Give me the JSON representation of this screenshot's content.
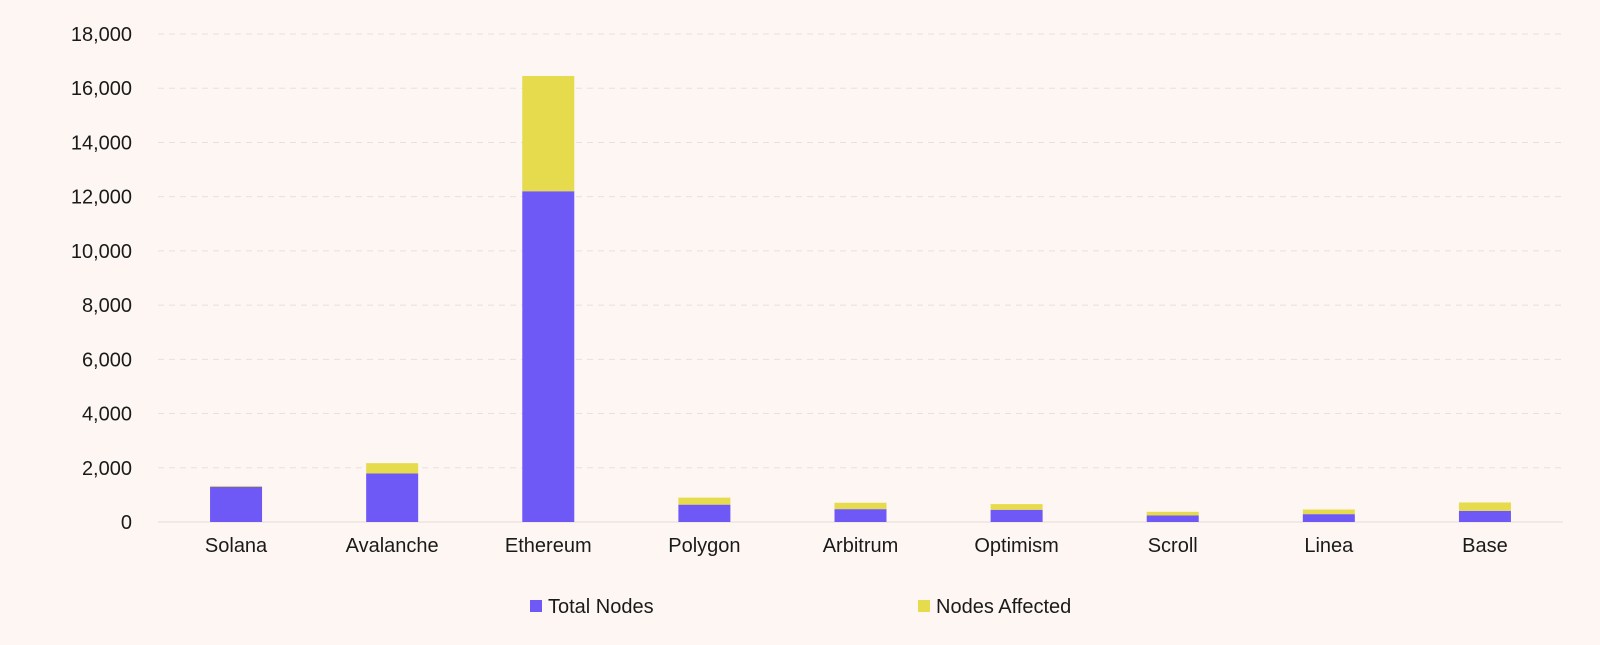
{
  "chart_data": {
    "type": "bar",
    "stacked": true,
    "title": "",
    "xlabel": "",
    "ylabel": "",
    "ylim": [
      0,
      18000
    ],
    "yticks": [
      0,
      2000,
      4000,
      6000,
      8000,
      10000,
      12000,
      14000,
      16000,
      18000
    ],
    "ytick_labels": [
      "0",
      "2,000",
      "4,000",
      "6,000",
      "8,000",
      "10,000",
      "12,000",
      "14,000",
      "16,000",
      "18,000"
    ],
    "grid": "horizontal dashed",
    "legend_position": "bottom",
    "categories": [
      "Solana",
      "Avalanche",
      "Ethereum",
      "Polygon",
      "Arbitrum",
      "Optimism",
      "Scroll",
      "Linea",
      "Base"
    ],
    "series": [
      {
        "name": "Total Nodes",
        "color": "#6e59f7",
        "values": [
          1300,
          1790,
          12200,
          640,
          475,
          450,
          240,
          290,
          410
        ]
      },
      {
        "name": "Nodes Affected",
        "color": "#e5db4c",
        "values": [
          30,
          380,
          4250,
          260,
          235,
          210,
          135,
          170,
          310
        ]
      }
    ]
  }
}
